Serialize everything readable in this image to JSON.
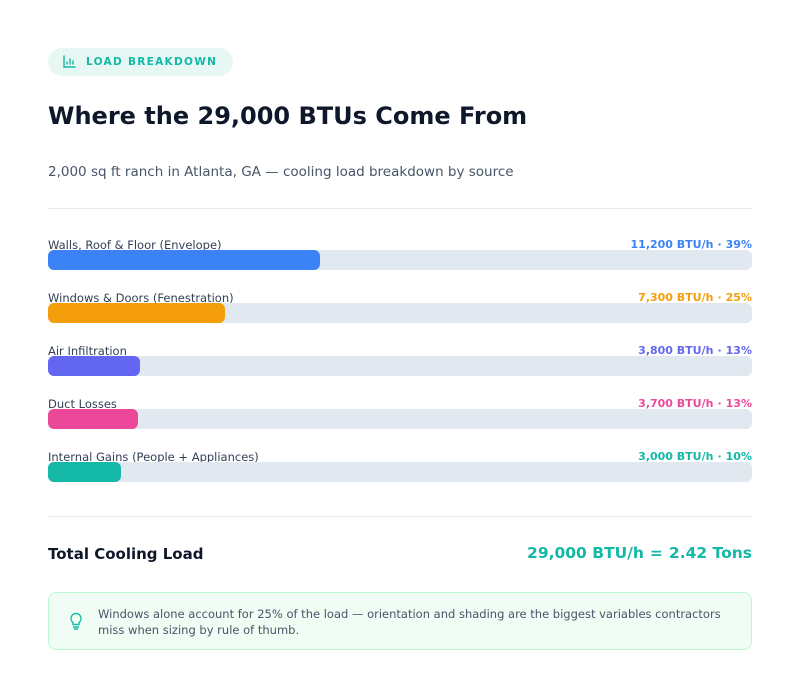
{
  "badge": "LOAD BREAKDOWN",
  "title": "Where the 29,000 BTUs Come From",
  "subtitle": "2,000 sq ft ranch in Atlanta, GA — cooling load breakdown by source",
  "separator": "·",
  "rows": [
    {
      "label": "Walls, Roof & Floor (Envelope)",
      "btu": 11200,
      "btu_label": "11,200 BTU/h",
      "share_label": "39%",
      "color": "#3b82f6"
    },
    {
      "label": "Windows & Doors (Fenestration)",
      "btu": 7300,
      "btu_label": "7,300 BTU/h",
      "share_label": "25%",
      "color": "#f59e0b"
    },
    {
      "label": "Air Infiltration",
      "btu": 3800,
      "btu_label": "3,800 BTU/h",
      "share_label": "13%",
      "color": "#6366f1"
    },
    {
      "label": "Duct Losses",
      "btu": 3700,
      "btu_label": "3,700 BTU/h",
      "share_label": "13%",
      "color": "#ec4899"
    },
    {
      "label": "Internal Gains (People + Appliances)",
      "btu": 3000,
      "btu_label": "3,000 BTU/h",
      "share_label": "10%",
      "color": "#14b8a6"
    }
  ],
  "total": {
    "label": "Total Cooling Load",
    "btu": 29000,
    "btu_label": "29,000 BTU/h",
    "equals": "=",
    "tons_label": "2.42 Tons"
  },
  "tip": "Windows alone account for 25% of the load — orientation and shading are the biggest variables contractors miss when sizing by rule of thumb."
}
